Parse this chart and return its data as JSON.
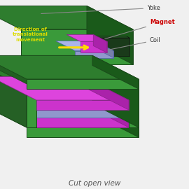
{
  "background_color": "#f0f0f0",
  "title": "Cut open view",
  "title_fontsize": 7.5,
  "title_color": "#555555",
  "fig_width": 2.7,
  "fig_height": 2.7,
  "dpi": 100,
  "green_top": "#2e7d2e",
  "green_front": "#3a9a3a",
  "green_right": "#1a5a1a",
  "green_left": "#256025",
  "magnet_top": "#dd44dd",
  "magnet_front": "#cc33cc",
  "magnet_right": "#aa22aa",
  "coil_top": "#aab4e8",
  "coil_front": "#9098cc",
  "coil_right": "#7880aa",
  "yellow": "#ffdd00",
  "label_yoke": "Yoke",
  "label_magnet": "Magnet",
  "label_coil": "Coil",
  "label_direction": "Direction of\ntranslational\nmovement",
  "label_direction_color": "#dddd00",
  "ann_color": "#888888"
}
